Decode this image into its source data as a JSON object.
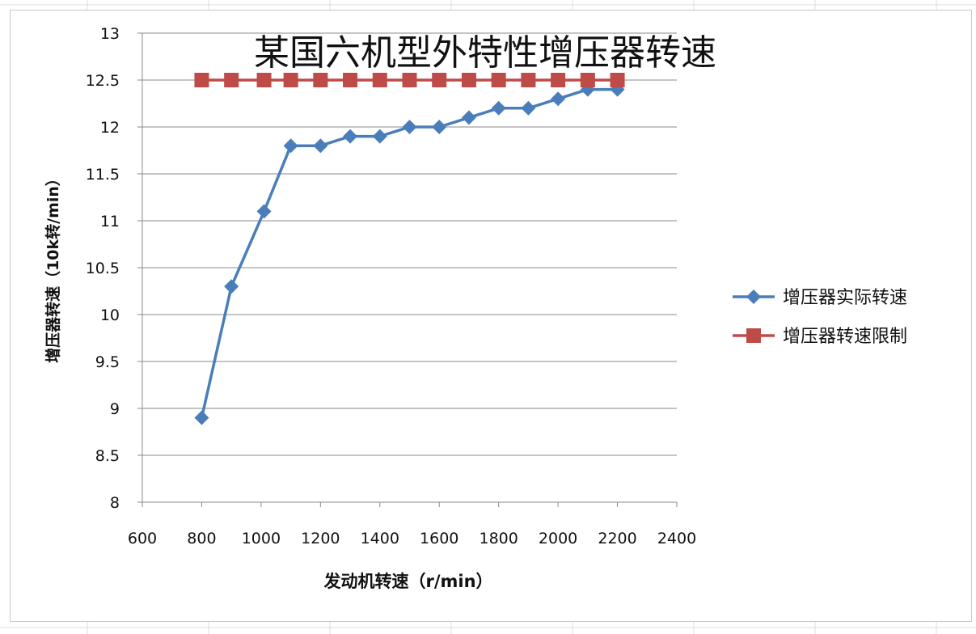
{
  "chart_data": {
    "type": "line",
    "title": "某国六机型外特性增压器转速",
    "xlabel": "发动机转速（r/min）",
    "ylabel": "增压器转速（10k转/min）",
    "xlim": [
      600,
      2400
    ],
    "ylim": [
      8,
      13
    ],
    "xticks": [
      600,
      800,
      1000,
      1200,
      1400,
      1600,
      1800,
      2000,
      2200,
      2400
    ],
    "yticks": [
      8,
      8.5,
      9,
      9.5,
      10,
      10.5,
      11,
      11.5,
      12,
      12.5,
      13
    ],
    "grid": "horizontal",
    "legend_position": "right",
    "series": [
      {
        "name": "增压器实际转速",
        "color": "#4a7ebb",
        "marker": "diamond",
        "x": [
          800,
          900,
          1010,
          1100,
          1200,
          1300,
          1400,
          1500,
          1600,
          1700,
          1800,
          1900,
          2000,
          2100,
          2200
        ],
        "values": [
          8.9,
          10.3,
          11.1,
          11.8,
          11.8,
          11.9,
          11.9,
          12.0,
          12.0,
          12.1,
          12.2,
          12.2,
          12.3,
          12.4,
          12.4
        ]
      },
      {
        "name": "增压器转速限制",
        "color": "#be4b48",
        "marker": "square",
        "x": [
          800,
          900,
          1010,
          1100,
          1200,
          1300,
          1400,
          1500,
          1600,
          1700,
          1800,
          1900,
          2000,
          2100,
          2200
        ],
        "values": [
          12.5,
          12.5,
          12.5,
          12.5,
          12.5,
          12.5,
          12.5,
          12.5,
          12.5,
          12.5,
          12.5,
          12.5,
          12.5,
          12.5,
          12.5
        ]
      }
    ]
  }
}
